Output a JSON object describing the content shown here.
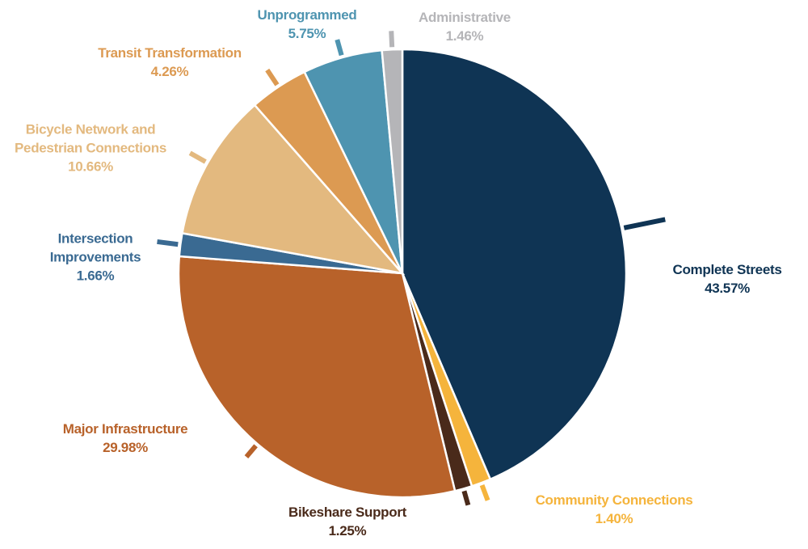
{
  "chart_data": {
    "type": "pie",
    "categories": [
      "Complete Streets",
      "Community Connections",
      "Bikeshare Support",
      "Major Infrastructure",
      "Intersection Improvements",
      "Bicycle Network and Pedestrian Connections",
      "Transit Transformation",
      "Unprogrammed",
      "Administrative"
    ],
    "values": [
      43.57,
      1.4,
      1.25,
      29.98,
      1.66,
      10.66,
      4.26,
      5.75,
      1.46
    ],
    "value_labels": [
      "43.57%",
      "1.40%",
      "1.25%",
      "29.98%",
      "1.66%",
      "10.66%",
      "4.26%",
      "5.75%",
      "1.46%"
    ],
    "colors": [
      "#0f3454",
      "#f5b43c",
      "#4a2a1a",
      "#b8622a",
      "#3a6a92",
      "#e3b97f",
      "#dc9a52",
      "#4e94b0",
      "#b5b5b8"
    ]
  }
}
